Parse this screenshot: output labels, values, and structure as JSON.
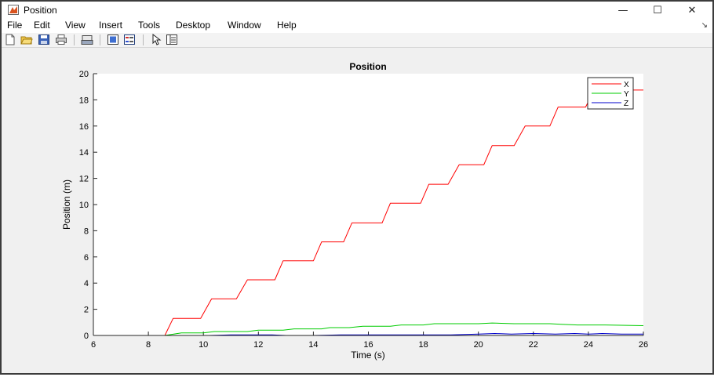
{
  "window": {
    "title": "Position",
    "minimize_glyph": "—",
    "maximize_glyph": "☐",
    "close_glyph": "✕"
  },
  "menu": {
    "items": [
      "File",
      "Edit",
      "View",
      "Insert",
      "Tools",
      "Desktop",
      "Window",
      "Help"
    ],
    "overflow_glyph": "↘"
  },
  "toolbar": {
    "icons": [
      "new-figure-icon",
      "open-file-icon",
      "save-icon",
      "print-icon",
      "print-preview-icon",
      "colorbar-icon",
      "legend-icon",
      "pointer-icon",
      "property-inspector-icon"
    ]
  },
  "colors": {
    "x_series": "#ff0000",
    "y_series": "#00cc00",
    "z_series": "#0000cc",
    "window_bg": "#f0f0f0",
    "axes_bg": "#ffffff"
  },
  "chart_data": {
    "type": "line",
    "title": "Position",
    "xlabel": "Time (s)",
    "ylabel": "Position (m)",
    "xlim": [
      6,
      26
    ],
    "ylim": [
      0,
      20
    ],
    "xticks": [
      6,
      8,
      10,
      12,
      14,
      16,
      18,
      20,
      22,
      24,
      26
    ],
    "yticks": [
      0,
      2,
      4,
      6,
      8,
      10,
      12,
      14,
      16,
      18,
      20
    ],
    "grid": false,
    "legend_position": "top-right",
    "series": [
      {
        "name": "X",
        "color": "#ff0000",
        "x": [
          6.0,
          8.6,
          8.9,
          9.9,
          10.3,
          11.2,
          11.6,
          12.6,
          12.9,
          14.0,
          14.3,
          15.1,
          15.4,
          16.5,
          16.8,
          17.9,
          18.2,
          18.9,
          19.3,
          20.2,
          20.5,
          21.3,
          21.7,
          22.6,
          22.9,
          23.9,
          24.2,
          25.0,
          26.0
        ],
        "y": [
          0.0,
          0.0,
          1.3,
          1.3,
          2.8,
          2.8,
          4.25,
          4.25,
          5.7,
          5.7,
          7.15,
          7.15,
          8.6,
          8.6,
          10.1,
          10.1,
          11.55,
          11.55,
          13.05,
          13.05,
          14.5,
          14.5,
          16.0,
          16.0,
          17.45,
          17.45,
          18.75,
          18.75,
          18.75
        ]
      },
      {
        "name": "Y",
        "color": "#00cc00",
        "x": [
          6.0,
          8.6,
          9.2,
          10.0,
          10.4,
          11.6,
          12.0,
          12.9,
          13.3,
          14.3,
          14.6,
          15.3,
          15.8,
          16.8,
          17.2,
          18.0,
          18.4,
          19.2,
          19.6,
          20.0,
          20.5,
          21.3,
          21.7,
          22.6,
          23.0,
          23.6,
          24.0,
          24.6,
          26.0
        ],
        "y": [
          0.0,
          0.0,
          0.2,
          0.2,
          0.3,
          0.3,
          0.4,
          0.4,
          0.5,
          0.5,
          0.6,
          0.6,
          0.7,
          0.7,
          0.8,
          0.8,
          0.9,
          0.9,
          0.9,
          0.9,
          0.95,
          0.9,
          0.9,
          0.9,
          0.85,
          0.8,
          0.8,
          0.8,
          0.75
        ]
      },
      {
        "name": "Z",
        "color": "#0000cc",
        "x": [
          6.0,
          8.6,
          9.4,
          10.2,
          11.0,
          12.5,
          13.0,
          14.0,
          15.0,
          16.0,
          17.0,
          18.0,
          19.0,
          20.0,
          20.6,
          21.2,
          22.0,
          22.8,
          23.5,
          24.0,
          24.5,
          25.2,
          26.0
        ],
        "y": [
          0.0,
          0.0,
          0.0,
          0.0,
          0.05,
          0.05,
          0.0,
          0.0,
          0.05,
          0.05,
          0.05,
          0.05,
          0.05,
          0.1,
          0.15,
          0.1,
          0.15,
          0.1,
          0.15,
          0.1,
          0.15,
          0.1,
          0.1
        ]
      }
    ]
  }
}
